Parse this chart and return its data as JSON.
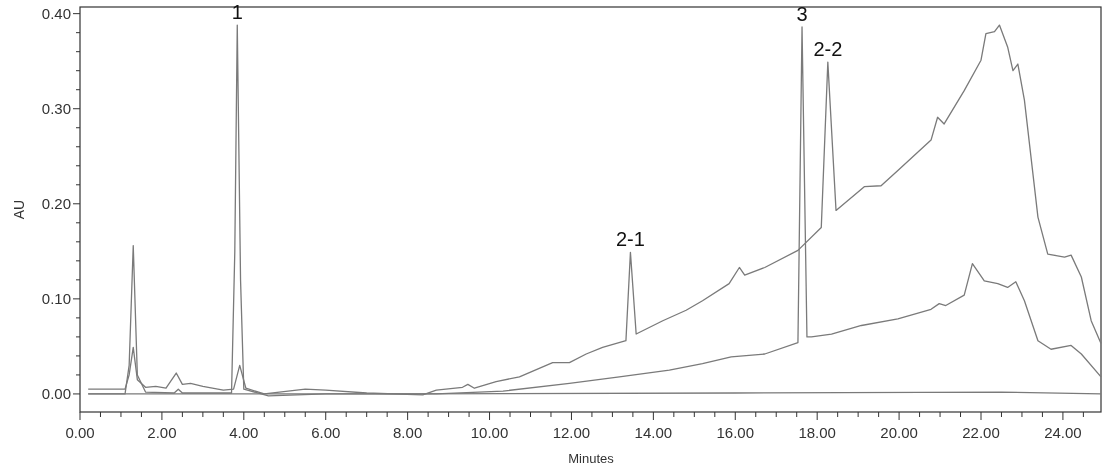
{
  "chart_data": {
    "type": "line",
    "xlabel": "Minutes",
    "ylabel": "AU",
    "xlim": [
      0,
      24.93
    ],
    "ylim": [
      -0.019,
      0.407
    ],
    "xticks": [
      {
        "value": 0,
        "label": "0.00"
      },
      {
        "value": 0.5,
        "label": null
      },
      {
        "value": 1,
        "label": null
      },
      {
        "value": 1.5,
        "label": null
      },
      {
        "value": 2,
        "label": "2.00"
      },
      {
        "value": 2.5,
        "label": null
      },
      {
        "value": 3,
        "label": null
      },
      {
        "value": 3.5,
        "label": null
      },
      {
        "value": 4,
        "label": "4.00"
      },
      {
        "value": 4.5,
        "label": null
      },
      {
        "value": 5,
        "label": null
      },
      {
        "value": 5.5,
        "label": null
      },
      {
        "value": 6,
        "label": "6.00"
      },
      {
        "value": 6.5,
        "label": null
      },
      {
        "value": 7,
        "label": null
      },
      {
        "value": 7.5,
        "label": null
      },
      {
        "value": 8,
        "label": "8.00"
      },
      {
        "value": 8.5,
        "label": null
      },
      {
        "value": 9,
        "label": null
      },
      {
        "value": 9.5,
        "label": null
      },
      {
        "value": 10,
        "label": "10.00"
      },
      {
        "value": 10.5,
        "label": null
      },
      {
        "value": 11,
        "label": null
      },
      {
        "value": 11.5,
        "label": null
      },
      {
        "value": 12,
        "label": "12.00"
      },
      {
        "value": 12.5,
        "label": null
      },
      {
        "value": 13,
        "label": null
      },
      {
        "value": 13.5,
        "label": null
      },
      {
        "value": 14,
        "label": "14.00"
      },
      {
        "value": 14.5,
        "label": null
      },
      {
        "value": 15,
        "label": null
      },
      {
        "value": 15.5,
        "label": null
      },
      {
        "value": 16,
        "label": "16.00"
      },
      {
        "value": 16.5,
        "label": null
      },
      {
        "value": 17,
        "label": null
      },
      {
        "value": 17.5,
        "label": null
      },
      {
        "value": 18,
        "label": "18.00"
      },
      {
        "value": 18.5,
        "label": null
      },
      {
        "value": 19,
        "label": null
      },
      {
        "value": 19.5,
        "label": null
      },
      {
        "value": 20,
        "label": "20.00"
      },
      {
        "value": 20.5,
        "label": null
      },
      {
        "value": 21,
        "label": null
      },
      {
        "value": 21.5,
        "label": null
      },
      {
        "value": 22,
        "label": "22.00"
      },
      {
        "value": 22.5,
        "label": null
      },
      {
        "value": 23,
        "label": null
      },
      {
        "value": 23.5,
        "label": null
      },
      {
        "value": 24,
        "label": "24.00"
      },
      {
        "value": 24.5,
        "label": null
      }
    ],
    "yticks": [
      {
        "value": 0,
        "label": "0.00"
      },
      {
        "value": 0.02,
        "label": null
      },
      {
        "value": 0.04,
        "label": null
      },
      {
        "value": 0.06,
        "label": null
      },
      {
        "value": 0.08,
        "label": null
      },
      {
        "value": 0.1,
        "label": "0.10"
      },
      {
        "value": 0.12,
        "label": null
      },
      {
        "value": 0.14,
        "label": null
      },
      {
        "value": 0.16,
        "label": null
      },
      {
        "value": 0.18,
        "label": null
      },
      {
        "value": 0.2,
        "label": "0.20"
      },
      {
        "value": 0.22,
        "label": null
      },
      {
        "value": 0.24,
        "label": null
      },
      {
        "value": 0.26,
        "label": null
      },
      {
        "value": 0.28,
        "label": null
      },
      {
        "value": 0.3,
        "label": "0.30"
      },
      {
        "value": 0.32,
        "label": null
      },
      {
        "value": 0.34,
        "label": null
      },
      {
        "value": 0.36,
        "label": null
      },
      {
        "value": 0.38,
        "label": null
      },
      {
        "value": 0.4,
        "label": "0.40"
      }
    ],
    "grid": false,
    "marker": "none",
    "line_style": "solid",
    "series": [
      {
        "color": "#7a7a7a",
        "x": [
          0.2,
          1.1,
          1.2,
          1.3,
          1.4,
          1.6,
          1.85,
          2.1,
          2.35,
          2.5,
          2.7,
          3.0,
          3.5,
          3.75,
          3.9,
          4.05,
          4.5,
          5.5,
          6.0,
          7.0,
          8.37,
          8.7,
          9.34,
          9.47,
          9.63,
          10.16,
          10.73,
          11.54,
          11.95,
          12.36,
          12.76,
          13.33,
          13.44,
          13.58,
          14.23,
          14.8,
          15.2,
          15.85,
          16.1,
          16.23,
          16.72,
          17.53,
          18.1,
          18.26,
          18.46,
          19.15,
          19.56,
          19.97,
          20.78,
          20.94,
          21.1,
          21.59,
          22.0,
          22.12,
          22.33,
          22.45,
          22.65,
          22.78,
          22.9,
          23.06,
          23.39,
          23.63,
          24.04,
          24.2,
          24.45,
          24.69,
          24.93
        ],
        "values": [
          0.005,
          0.005,
          0.02,
          0.049,
          0.015,
          0.007,
          0.008,
          0.006,
          0.022,
          0.01,
          0.011,
          0.008,
          0.004,
          0.005,
          0.03,
          0.006,
          0.0,
          0.005,
          0.004,
          0.001,
          -0.001,
          0.004,
          0.007,
          0.01,
          0.006,
          0.013,
          0.018,
          0.033,
          0.033,
          0.042,
          0.049,
          0.056,
          0.149,
          0.063,
          0.077,
          0.088,
          0.098,
          0.116,
          0.133,
          0.125,
          0.133,
          0.151,
          0.175,
          0.349,
          0.193,
          0.218,
          0.219,
          0.235,
          0.267,
          0.291,
          0.284,
          0.319,
          0.351,
          0.379,
          0.381,
          0.388,
          0.365,
          0.34,
          0.347,
          0.309,
          0.186,
          0.147,
          0.144,
          0.146,
          0.123,
          0.077,
          0.053
        ]
      },
      {
        "color": "#7a7a7a",
        "x": [
          0.2,
          1.1,
          1.2,
          1.3,
          1.4,
          1.6,
          2.3,
          2.4,
          2.5,
          3.7,
          3.78,
          3.84,
          3.92,
          4.0,
          4.6,
          6.0,
          8.7,
          10.33,
          11.95,
          13.17,
          14.39,
          15.2,
          15.9,
          16.72,
          17.53,
          17.63,
          17.75,
          17.86,
          18.35,
          19.08,
          19.97,
          20.78,
          20.98,
          21.14,
          21.59,
          21.79,
          22.08,
          22.41,
          22.65,
          22.85,
          23.06,
          23.39,
          23.71,
          24.2,
          24.45,
          24.93
        ],
        "values": [
          0.0,
          0.0,
          0.03,
          0.156,
          0.02,
          0.002,
          0.001,
          0.005,
          0.001,
          0.001,
          0.15,
          0.388,
          0.12,
          0.005,
          -0.002,
          0.0,
          0.0,
          0.003,
          0.011,
          0.018,
          0.025,
          0.032,
          0.039,
          0.042,
          0.054,
          0.386,
          0.06,
          0.06,
          0.063,
          0.072,
          0.079,
          0.089,
          0.095,
          0.093,
          0.104,
          0.137,
          0.119,
          0.116,
          0.112,
          0.118,
          0.098,
          0.056,
          0.047,
          0.051,
          0.042,
          0.018
        ]
      },
      {
        "color": "#7a7a7a",
        "x": [
          0.2,
          8.0,
          16.0,
          22.5,
          24.93
        ],
        "values": [
          0.0,
          0.0,
          0.001,
          0.002,
          0.0
        ]
      }
    ],
    "annotations": [
      {
        "text": "1",
        "x": 3.84,
        "y": 0.388
      },
      {
        "text": "2-1",
        "x": 13.44,
        "y": 0.149
      },
      {
        "text": "3",
        "x": 17.63,
        "y": 0.386
      },
      {
        "text": "2-2",
        "x": 18.26,
        "y": 0.349
      }
    ]
  }
}
